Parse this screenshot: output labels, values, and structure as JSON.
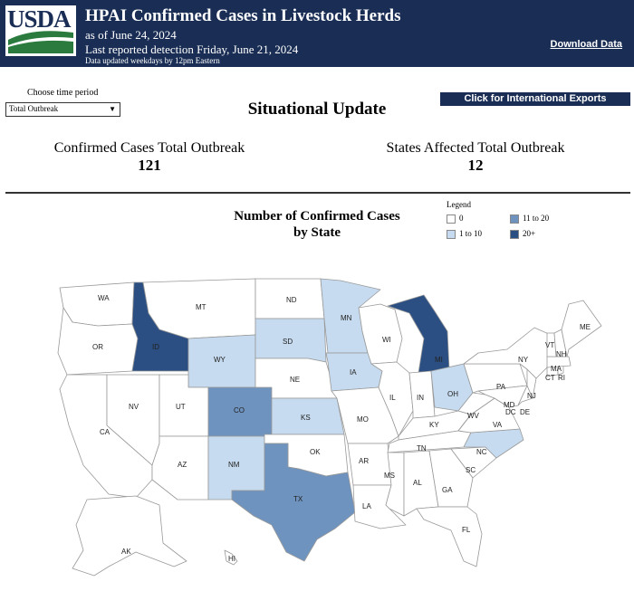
{
  "header": {
    "logo_text": "USDA",
    "title": "HPAI Confirmed Cases in Livestock Herds",
    "as_of": "as of June 24, 2024",
    "last_detection": "Last reported detection Friday, June 21, 2024",
    "update_note": "Data updated weekdays by 12pm Eastern",
    "download_label": "Download Data"
  },
  "controls": {
    "period_label": "Choose time period",
    "period_value": "Total Outbreak",
    "intl_label": "Click for International Exports"
  },
  "situational_title": "Situational Update",
  "stats": {
    "cases_label": "Confirmed Cases Total Outbreak",
    "cases_value": "121",
    "states_label": "States Affected Total Outbreak",
    "states_value": "12"
  },
  "map": {
    "title_line1": "Number of Confirmed Cases",
    "title_line2": "by State",
    "legend_title": "Legend",
    "legend": [
      {
        "label": "0",
        "color": "#ffffff"
      },
      {
        "label": "11 to 20",
        "color": "#6f93bf"
      },
      {
        "label": "1 to 10",
        "color": "#c6dbef"
      },
      {
        "label": "20+",
        "color": "#2b4f82"
      }
    ],
    "state_labels": [
      "WA",
      "MT",
      "ND",
      "MN",
      "ME",
      "OR",
      "ID",
      "SD",
      "WI",
      "MI",
      "VT",
      "NH",
      "NY",
      "MA",
      "CT",
      "RI",
      "WY",
      "IA",
      "PA",
      "NJ",
      "NE",
      "NV",
      "UT",
      "CO",
      "IL",
      "IN",
      "OH",
      "MD",
      "DC",
      "DE",
      "KS",
      "MO",
      "KY",
      "WV",
      "VA",
      "CA",
      "OK",
      "TN",
      "NC",
      "AZ",
      "NM",
      "AR",
      "SC",
      "MS",
      "AL",
      "GA",
      "TX",
      "LA",
      "FL",
      "AK",
      "HI"
    ],
    "affected_states": {
      "ID": "20+",
      "MI": "20+",
      "CO": "11 to 20",
      "TX": "11 to 20",
      "MN": "1 to 10",
      "SD": "1 to 10",
      "WY": "1 to 10",
      "IA": "1 to 10",
      "KS": "1 to 10",
      "NM": "1 to 10",
      "OH": "1 to 10",
      "NC": "1 to 10"
    }
  }
}
